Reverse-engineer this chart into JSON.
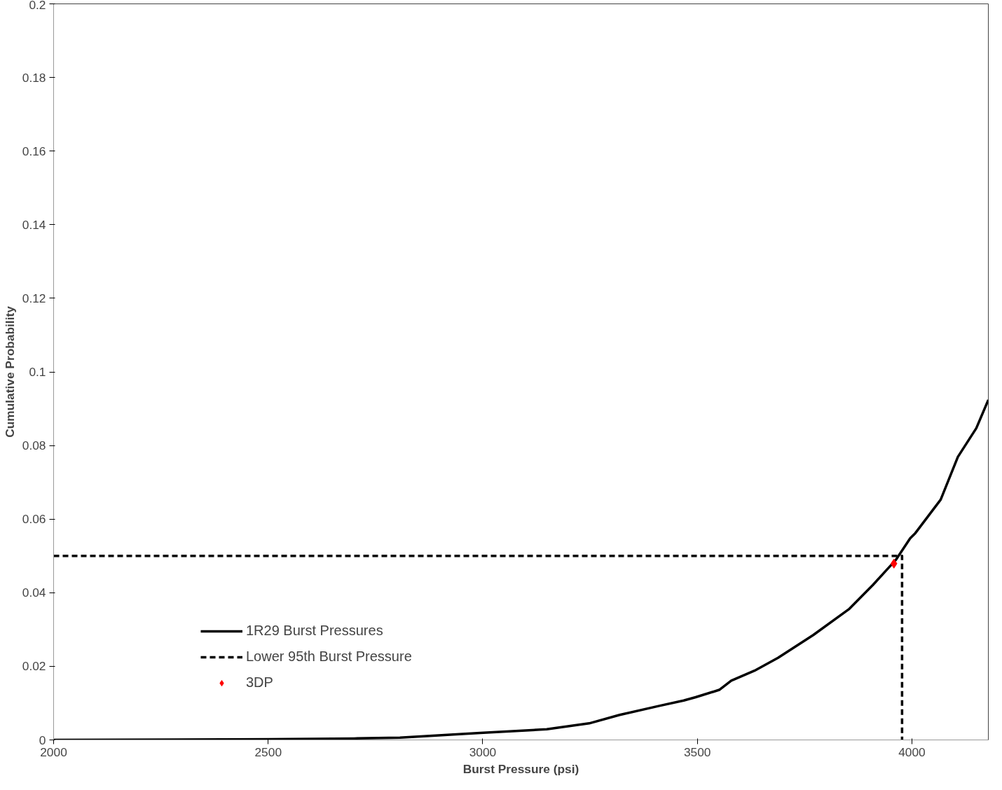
{
  "chart_data": {
    "type": "line",
    "xlabel": "Burst Pressure (psi)",
    "ylabel": "Cumulative Probability",
    "xlim": [
      2000,
      4178
    ],
    "ylim": [
      0,
      0.2
    ],
    "xticks": [
      2000,
      2500,
      3000,
      3500,
      4000
    ],
    "yticks": [
      0,
      0.02,
      0.04,
      0.06,
      0.08,
      0.1,
      0.12,
      0.14,
      0.16,
      0.18,
      0.2
    ],
    "grid": false,
    "legend": "bottom left",
    "series": [
      {
        "name": "1R29 Burst Pressures",
        "color": "#000000",
        "line_style": "solid",
        "x": [
          2000,
          2500,
          2700,
          2807,
          2994,
          3149,
          3248,
          3319,
          3413,
          3468,
          3496,
          3551,
          3579,
          3633,
          3688,
          3770,
          3853,
          3909,
          3963,
          3996,
          4008,
          4067,
          4107,
          4150,
          4178
        ],
        "values": [
          0,
          0.0002,
          0.0004,
          0.0006,
          0.0019,
          0.0029,
          0.0045,
          0.0068,
          0.0093,
          0.0107,
          0.0116,
          0.0136,
          0.0161,
          0.0188,
          0.0223,
          0.0285,
          0.0355,
          0.0421,
          0.049,
          0.0548,
          0.0562,
          0.0653,
          0.0769,
          0.0847,
          0.0924
        ]
      },
      {
        "name": "Lower 95th Burst Pressure",
        "color": "#000000",
        "type": "line",
        "line_style": "dashed",
        "x": [
          2000,
          3977,
          3977
        ],
        "values": [
          0.05,
          0.05,
          0
        ]
      },
      {
        "name": "3DP",
        "color": "#ff0000",
        "type": "scatter",
        "marker": "diamond",
        "x": [
          3958
        ],
        "values": [
          0.0479
        ]
      }
    ]
  }
}
